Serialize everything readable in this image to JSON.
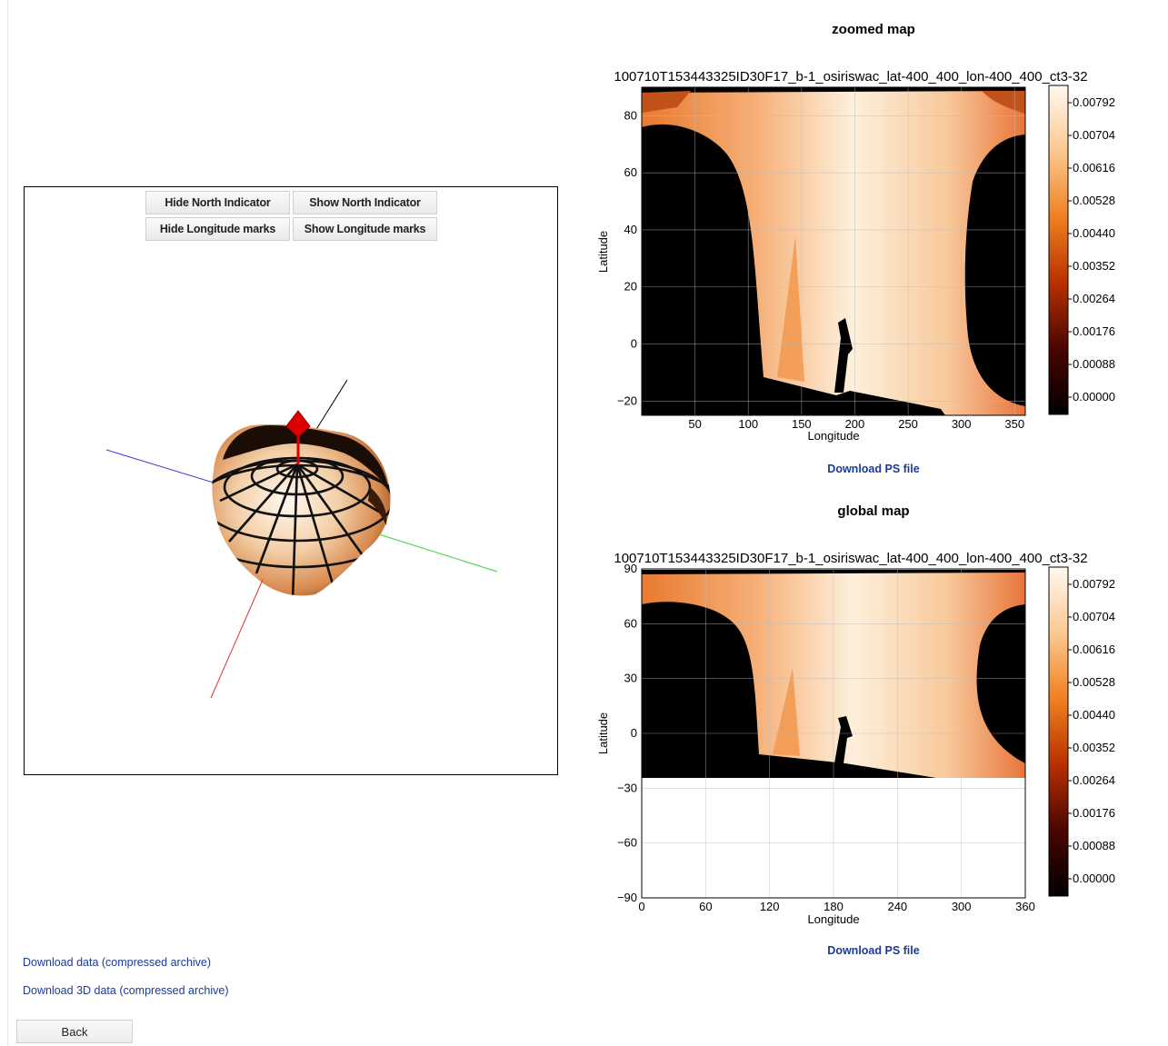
{
  "viewer": {
    "buttons": {
      "hide_north": "Hide North Indicator",
      "show_north": "Show North Indicator",
      "hide_longitude": "Hide Longitude marks",
      "show_longitude": "Show Longitude marks"
    },
    "axis_colors": {
      "x": "#d33",
      "y": "#3bd13b",
      "z": "#3a3ad8",
      "pole": "#000000",
      "north_indicator": "#dd0000"
    }
  },
  "zoomed": {
    "section_title": "zoomed map",
    "download_label": "Download PS file"
  },
  "global": {
    "section_title": "global map",
    "download_label": "Download PS file"
  },
  "footer": {
    "download_data": "Download data (compressed archive)",
    "download_3d": "Download 3D data (compressed archive)",
    "back": "Back"
  },
  "chart_data": [
    {
      "type": "heatmap",
      "title": "100710T153443325ID30F17_b-1_osiriswac_lat-400_400_lon-400_400_ct3-32",
      "xlabel": "Longitude",
      "ylabel": "Latitude",
      "xlim": [
        0,
        360
      ],
      "ylim": [
        -25,
        90
      ],
      "xticks": [
        "50",
        "100",
        "150",
        "200",
        "250",
        "300",
        "350"
      ],
      "yticks": [
        "80",
        "60",
        "40",
        "20",
        "0",
        "−20"
      ],
      "colorbar_ticks": [
        "0.00792",
        "0.00704",
        "0.00616",
        "0.00528",
        "0.00440",
        "0.00352",
        "0.00264",
        "0.00176",
        "0.00088",
        "0.00000"
      ],
      "grid": true
    },
    {
      "type": "heatmap",
      "title": "100710T153443325ID30F17_b-1_osiriswac_lat-400_400_lon-400_400_ct3-32",
      "xlabel": "Longitude",
      "ylabel": "Latitude",
      "xlim": [
        0,
        360
      ],
      "ylim": [
        -90,
        90
      ],
      "xticks": [
        "0",
        "60",
        "120",
        "180",
        "240",
        "300",
        "360"
      ],
      "yticks": [
        "90",
        "60",
        "30",
        "0",
        "−30",
        "−60",
        "−90"
      ],
      "colorbar_ticks": [
        "0.00792",
        "0.00704",
        "0.00616",
        "0.00528",
        "0.00440",
        "0.00352",
        "0.00264",
        "0.00176",
        "0.00088",
        "0.00000"
      ],
      "grid": true
    }
  ]
}
